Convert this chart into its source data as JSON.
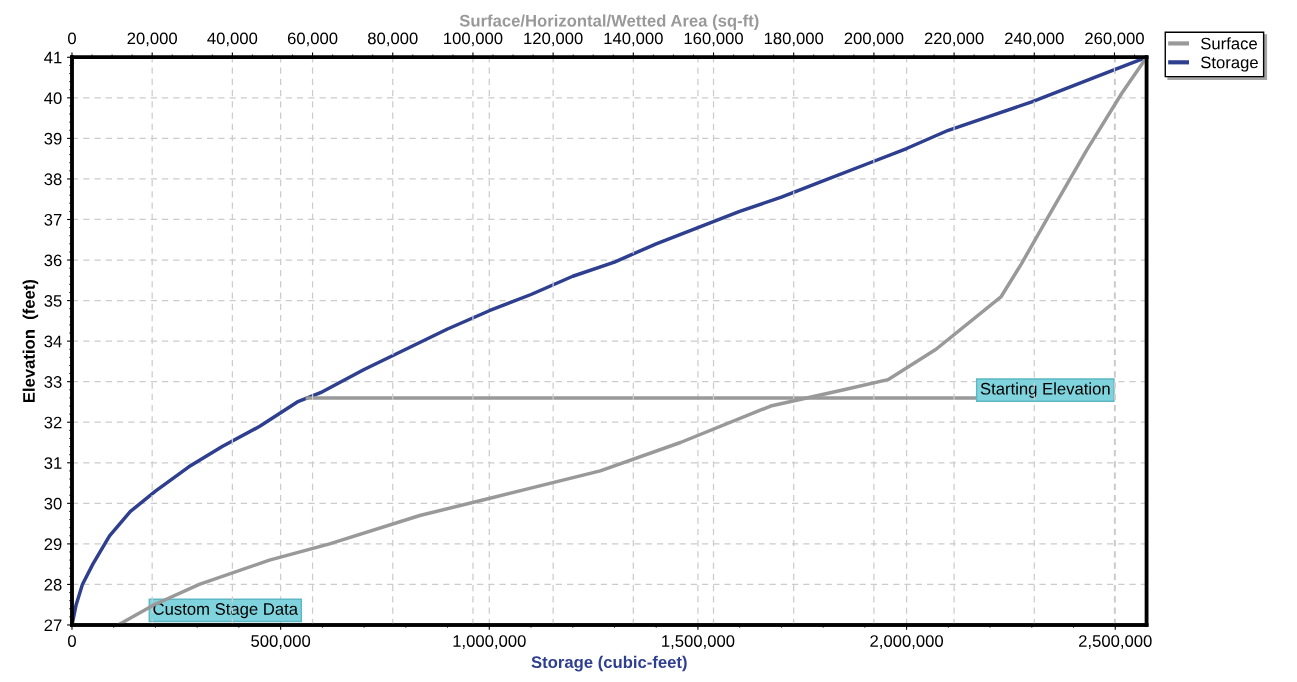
{
  "chart_data": {
    "type": "line",
    "xlabel": "Storage (cubic-feet)",
    "x2label": "Surface/Horizontal/Wetted Area (sq-ft)",
    "ylabel": "Elevation  (feet)",
    "xlim": [
      0,
      2575000
    ],
    "xticks": [
      0,
      {
        "value": 500000,
        "label": "500,000"
      },
      {
        "value": 1000000,
        "label": "1,000,000"
      },
      {
        "value": 1500000,
        "label": "1,500,000"
      },
      {
        "value": 2000000,
        "label": "2,000,000"
      },
      {
        "value": 2500000,
        "label": "2,500,000"
      }
    ],
    "x2lim": [
      0,
      268000
    ],
    "x2ticks": [
      0,
      {
        "value": 20000,
        "label": "20,000"
      },
      {
        "value": 40000,
        "label": "40,000"
      },
      {
        "value": 60000,
        "label": "60,000"
      },
      {
        "value": 80000,
        "label": "80,000"
      },
      {
        "value": 100000,
        "label": "100,000"
      },
      {
        "value": 120000,
        "label": "120,000"
      },
      {
        "value": 140000,
        "label": "140,000"
      },
      {
        "value": 160000,
        "label": "160,000"
      },
      {
        "value": 180000,
        "label": "180,000"
      },
      {
        "value": 200000,
        "label": "200,000"
      },
      {
        "value": 220000,
        "label": "220,000"
      },
      {
        "value": 240000,
        "label": "240,000"
      },
      {
        "value": 260000,
        "label": "260,000"
      }
    ],
    "ylim": [
      27,
      41
    ],
    "yticks": [
      27,
      28,
      29,
      30,
      31,
      32,
      33,
      34,
      35,
      36,
      37,
      38,
      39,
      40,
      41
    ],
    "grid": true,
    "legend": "top right",
    "marker": "none",
    "line_style": "solid",
    "series": [
      {
        "name": "Surface",
        "color": "#999999",
        "axis": "x2",
        "x": [
          11500,
          20500,
          31750,
          49250,
          64250,
          86750,
          105250,
          131750,
          151750,
          174250,
          192500,
          203500,
          215500,
          231750,
          236750,
          244250,
          253000,
          261750,
          268000
        ],
        "values": [
          27,
          27.5,
          28.0,
          28.6,
          29.0,
          29.7,
          30.15,
          30.8,
          31.5,
          32.4,
          32.8,
          33.05,
          33.8,
          35.1,
          35.9,
          37.2,
          38.7,
          40.1,
          41
        ]
      },
      {
        "name": "Storage",
        "color": "#2e3f8f",
        "x": [
          0,
          10000,
          25000,
          50000,
          90000,
          140000,
          200000,
          280000,
          360000,
          450000,
          540000,
          600000,
          700000,
          800000,
          900000,
          1000000,
          1100000,
          1200000,
          1300000,
          1400000,
          1500000,
          1600000,
          1700000,
          1800000,
          1900000,
          2000000,
          2100000,
          2200000,
          2300000,
          2400000,
          2500000,
          2575000
        ],
        "values": [
          27,
          27.5,
          28,
          28.5,
          29.2,
          29.8,
          30.3,
          30.9,
          31.4,
          31.9,
          32.5,
          32.75,
          33.3,
          33.8,
          34.3,
          34.75,
          35.15,
          35.6,
          35.95,
          36.4,
          36.8,
          37.2,
          37.55,
          37.95,
          38.35,
          38.75,
          39.2,
          39.55,
          39.9,
          40.3,
          40.7,
          41
        ]
      }
    ],
    "ref_lines": [
      {
        "axis": "y",
        "value": 32.6,
        "label": "Starting Elevation",
        "color": "#999999"
      }
    ],
    "annotations": [
      "Custom Stage Data"
    ]
  }
}
